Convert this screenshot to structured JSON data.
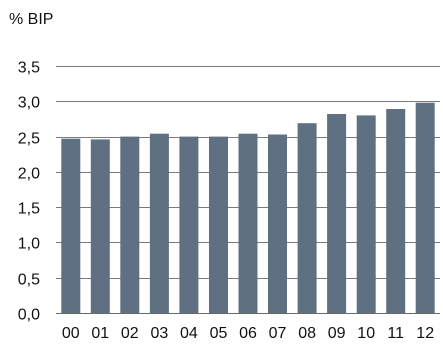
{
  "chart_data": {
    "type": "bar",
    "unit_label": "% BIP",
    "categories": [
      "00",
      "01",
      "02",
      "03",
      "04",
      "05",
      "06",
      "07",
      "08",
      "09",
      "10",
      "11",
      "12"
    ],
    "values": [
      2.47,
      2.46,
      2.5,
      2.54,
      2.5,
      2.5,
      2.54,
      2.53,
      2.69,
      2.82,
      2.8,
      2.89,
      2.98
    ],
    "ylim": [
      0,
      3.5
    ],
    "yticks": [
      "0,0",
      "0,5",
      "1,0",
      "1,5",
      "2,0",
      "2,5",
      "3,0",
      "3,5"
    ],
    "ytick_values": [
      0,
      0.5,
      1.0,
      1.5,
      2.0,
      2.5,
      3.0,
      3.5
    ],
    "grid": true,
    "legend": false,
    "bar_color": "#5f7082",
    "grid_color": "#7a7a7a"
  }
}
